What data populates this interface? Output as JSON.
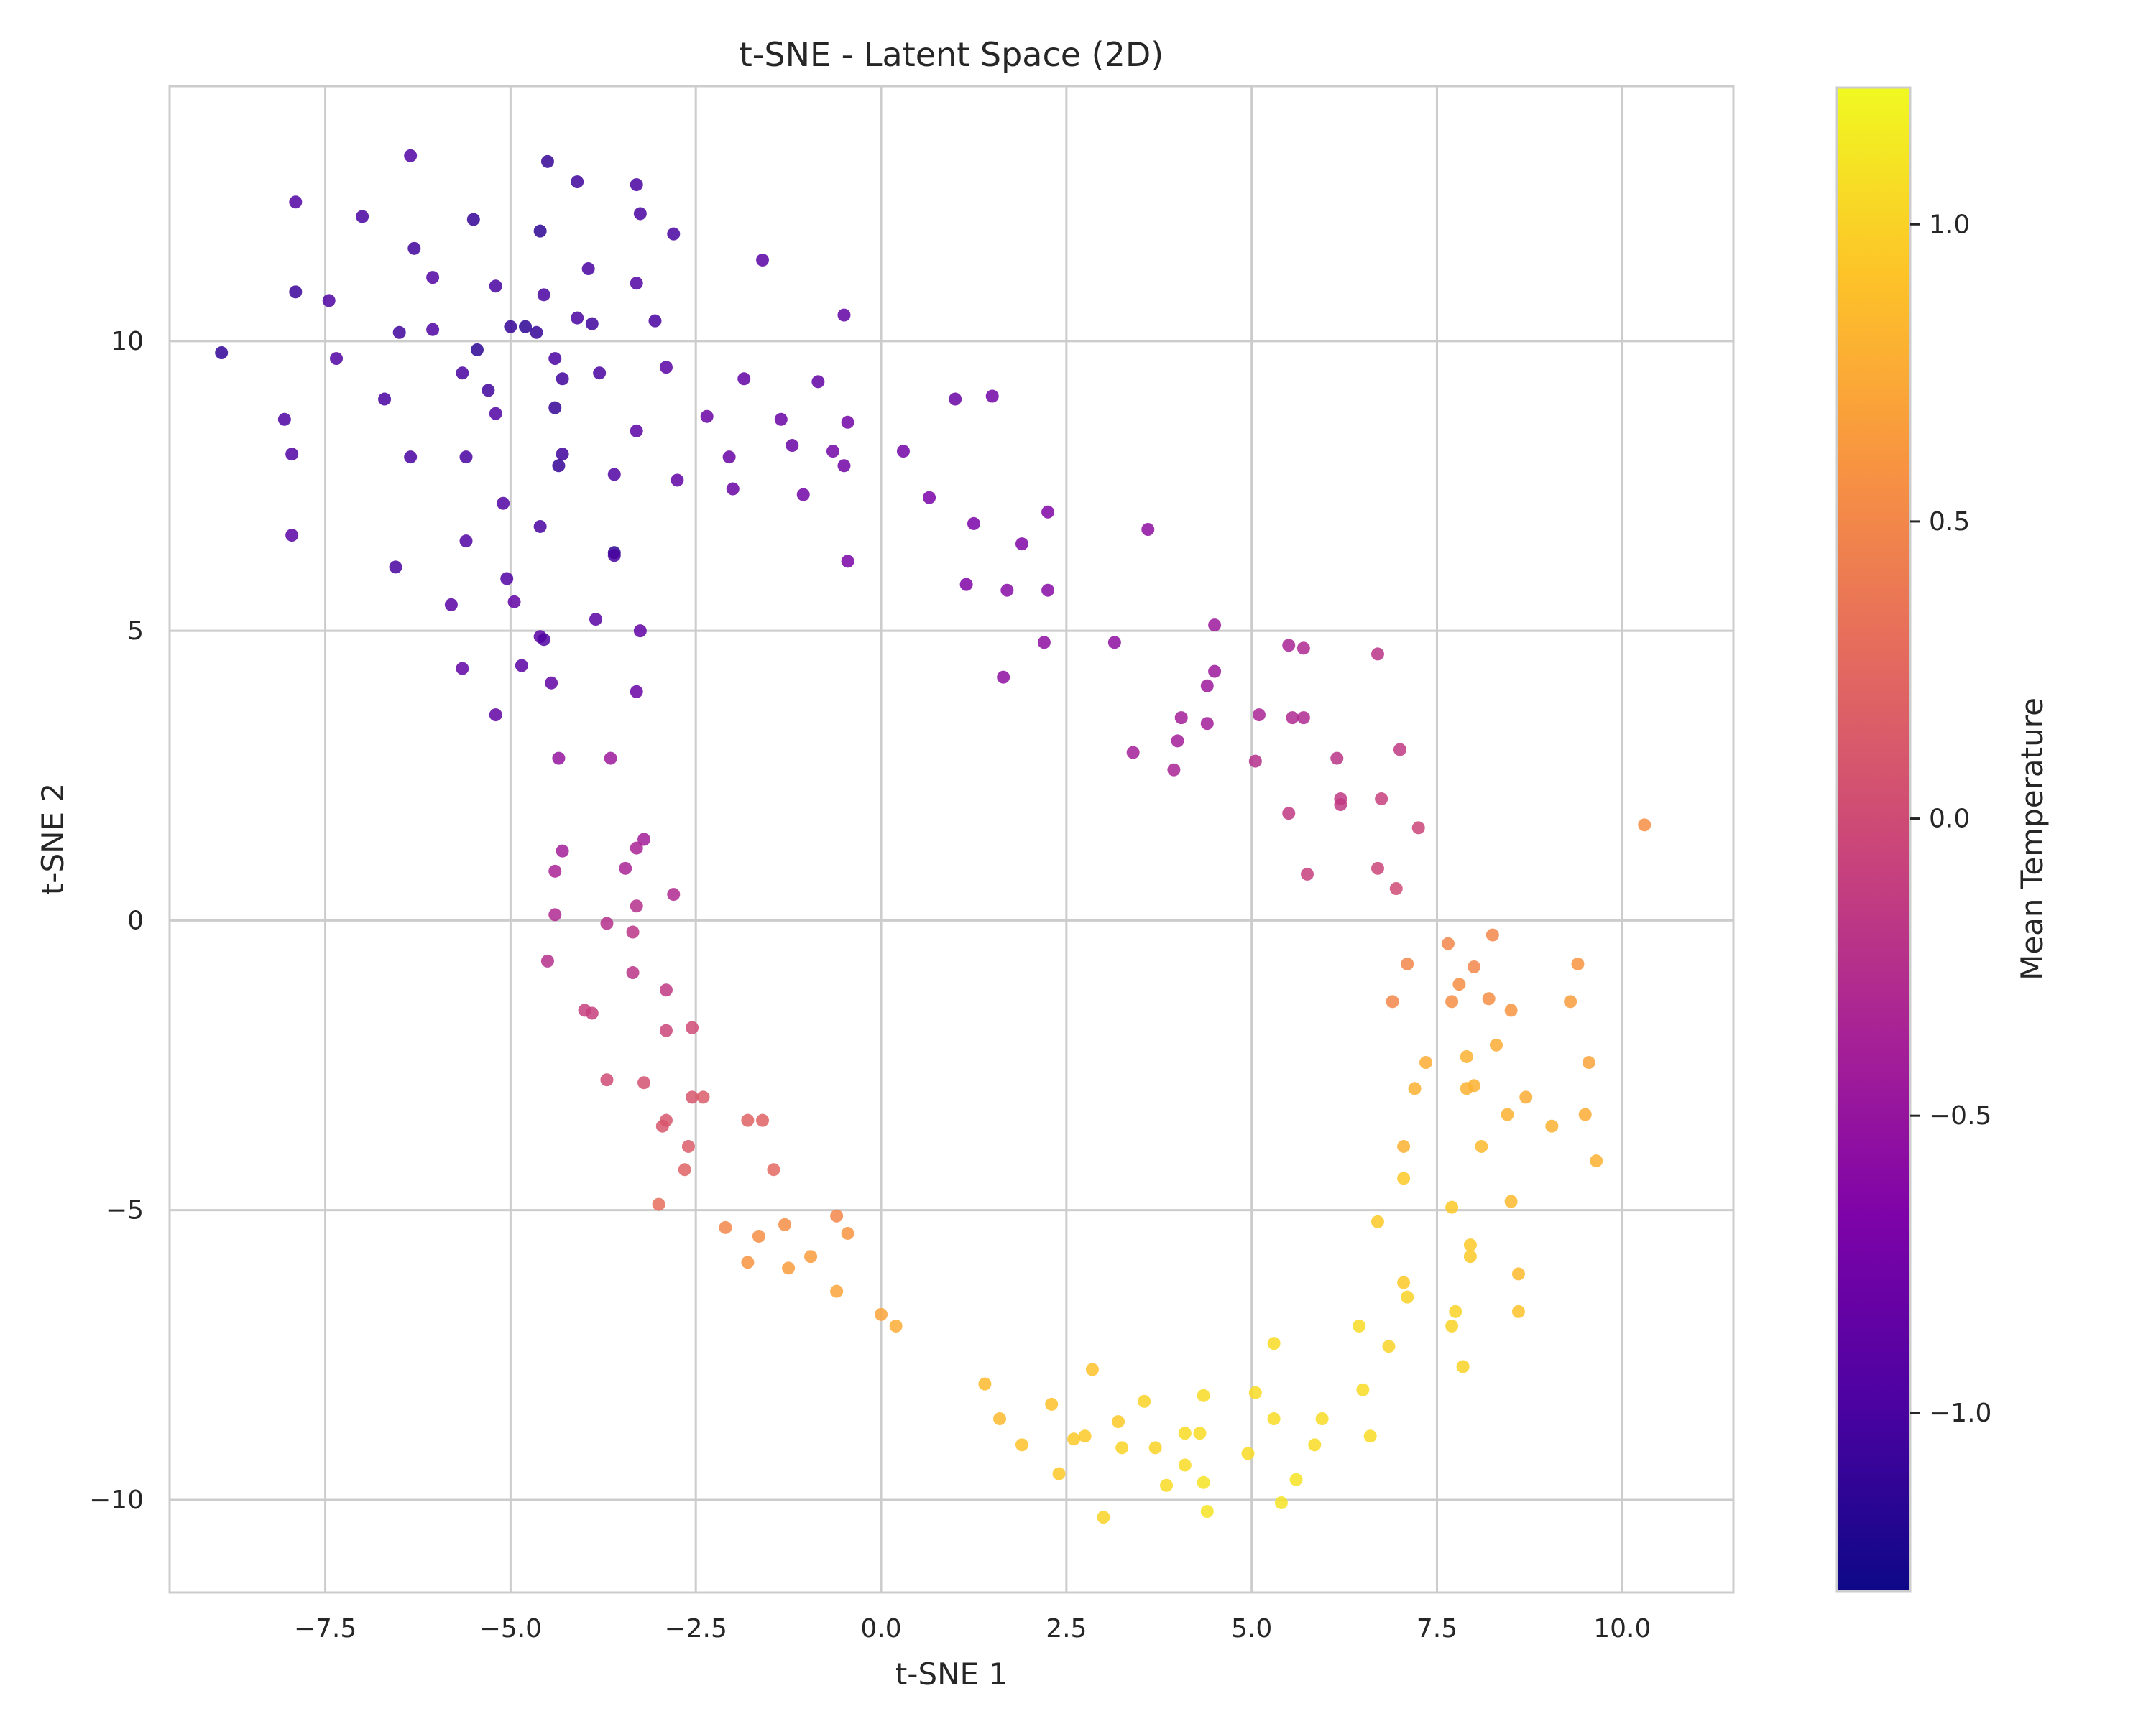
{
  "chart_data": {
    "type": "scatter",
    "title": "t-SNE - Latent Space (2D)",
    "xlabel": "t-SNE 1",
    "ylabel": "t-SNE 2",
    "xlim": [
      -9.6,
      11.5
    ],
    "ylim": [
      -11.6,
      14.4
    ],
    "xticks": [
      -7.5,
      -5.0,
      -2.5,
      0.0,
      2.5,
      5.0,
      7.5,
      10.0
    ],
    "xtick_labels": [
      "−7.5",
      "−5.0",
      "−2.5",
      "0.0",
      "2.5",
      "5.0",
      "7.5",
      "10.0"
    ],
    "yticks": [
      -10,
      -5,
      0,
      5,
      10
    ],
    "ytick_labels": [
      "−10",
      "−5",
      "0",
      "5",
      "10"
    ],
    "grid": true,
    "colorbar": {
      "label": "Mean Temperature",
      "colormap": "plasma",
      "range": [
        -1.3,
        1.23
      ],
      "ticks": [
        -1.0,
        -0.5,
        0.0,
        0.5,
        1.0
      ],
      "tick_labels": [
        "−1.0",
        "−0.5",
        "0.0",
        "0.5",
        "1.0"
      ]
    },
    "points": [
      [
        -8.9,
        9.8,
        -1.12
      ],
      [
        -7.9,
        12.4,
        -0.95
      ],
      [
        -7.9,
        10.85,
        -1.08
      ],
      [
        -8.05,
        8.65,
        -0.98
      ],
      [
        -7.95,
        8.05,
        -0.95
      ],
      [
        -7.95,
        6.65,
        -0.9
      ],
      [
        -7.45,
        10.7,
        -0.98
      ],
      [
        -7.35,
        9.7,
        -0.95
      ],
      [
        -7.0,
        12.15,
        -1.0
      ],
      [
        -6.35,
        13.2,
        -0.95
      ],
      [
        -6.3,
        11.6,
        -1.05
      ],
      [
        -6.05,
        11.1,
        -0.95
      ],
      [
        -6.05,
        10.2,
        -0.98
      ],
      [
        -6.5,
        10.15,
        -1.05
      ],
      [
        -6.7,
        9.0,
        -1.0
      ],
      [
        -6.35,
        8.0,
        -1.0
      ],
      [
        -6.55,
        6.1,
        -1.0
      ],
      [
        -5.5,
        12.1,
        -1.1
      ],
      [
        -5.45,
        9.85,
        -1.15
      ],
      [
        -5.65,
        9.45,
        -1.0
      ],
      [
        -5.3,
        9.15,
        -1.05
      ],
      [
        -5.2,
        10.95,
        -1.0
      ],
      [
        -5.2,
        8.75,
        -0.95
      ],
      [
        -5.0,
        10.25,
        -1.1
      ],
      [
        -4.8,
        10.25,
        -1.15
      ],
      [
        -4.65,
        10.15,
        -1.1
      ],
      [
        -4.6,
        11.9,
        -1.15
      ],
      [
        -4.5,
        13.1,
        -1.1
      ],
      [
        -4.55,
        10.8,
        -1.0
      ],
      [
        -4.1,
        12.75,
        -1.05
      ],
      [
        -4.4,
        9.7,
        -1.0
      ],
      [
        -4.3,
        9.35,
        -1.05
      ],
      [
        -4.4,
        8.85,
        -1.1
      ],
      [
        -4.3,
        8.05,
        -1.05
      ],
      [
        -4.35,
        7.85,
        -1.1
      ],
      [
        -4.1,
        10.4,
        -1.0
      ],
      [
        -3.9,
        10.3,
        -1.05
      ],
      [
        -3.95,
        11.25,
        -1.0
      ],
      [
        -3.8,
        9.45,
        -1.0
      ],
      [
        -3.6,
        7.7,
        -0.95
      ],
      [
        -5.6,
        8.0,
        -1.0
      ],
      [
        -5.1,
        7.2,
        -0.95
      ],
      [
        -4.6,
        6.8,
        -1.0
      ],
      [
        -5.6,
        6.55,
        -0.95
      ],
      [
        -5.05,
        5.9,
        -0.95
      ],
      [
        -5.8,
        5.45,
        -0.9
      ],
      [
        -4.95,
        5.5,
        -0.85
      ],
      [
        -4.6,
        4.9,
        -0.9
      ],
      [
        -4.55,
        4.85,
        -0.95
      ],
      [
        -5.65,
        4.35,
        -0.85
      ],
      [
        -4.85,
        4.4,
        -0.9
      ],
      [
        -4.45,
        4.1,
        -0.85
      ],
      [
        -5.2,
        3.55,
        -0.85
      ],
      [
        -3.6,
        6.35,
        -1.15
      ],
      [
        -3.6,
        6.3,
        -1.0
      ],
      [
        -3.85,
        5.2,
        -0.9
      ],
      [
        -3.3,
        3.95,
        -0.8
      ],
      [
        -3.25,
        5.0,
        -0.85
      ],
      [
        -3.3,
        12.7,
        -1.0
      ],
      [
        -3.25,
        12.2,
        -1.0
      ],
      [
        -2.8,
        11.85,
        -1.0
      ],
      [
        -3.3,
        11.0,
        -0.95
      ],
      [
        -3.05,
        10.35,
        -1.0
      ],
      [
        -2.9,
        9.55,
        -0.9
      ],
      [
        -3.3,
        8.45,
        -0.9
      ],
      [
        -2.75,
        7.6,
        -0.85
      ],
      [
        -1.6,
        11.4,
        -0.9
      ],
      [
        -0.5,
        10.45,
        -0.85
      ],
      [
        -1.85,
        9.35,
        -0.85
      ],
      [
        -0.85,
        9.3,
        -0.85
      ],
      [
        -2.35,
        8.7,
        -0.8
      ],
      [
        -2.05,
        8.0,
        -0.8
      ],
      [
        -2.0,
        7.45,
        -0.8
      ],
      [
        -1.35,
        8.65,
        -0.8
      ],
      [
        -1.2,
        8.2,
        -0.8
      ],
      [
        -1.05,
        7.35,
        -0.75
      ],
      [
        -0.65,
        8.1,
        -0.75
      ],
      [
        -0.45,
        8.6,
        -0.75
      ],
      [
        -0.5,
        7.85,
        -0.75
      ],
      [
        -0.45,
        6.2,
        -0.7
      ],
      [
        0.3,
        8.1,
        -0.75
      ],
      [
        0.65,
        7.3,
        -0.7
      ],
      [
        1.0,
        9.0,
        -0.8
      ],
      [
        1.5,
        9.05,
        -0.75
      ],
      [
        1.25,
        6.85,
        -0.7
      ],
      [
        1.15,
        5.8,
        -0.65
      ],
      [
        1.9,
        6.5,
        -0.65
      ],
      [
        2.25,
        7.05,
        -0.65
      ],
      [
        1.7,
        5.7,
        -0.6
      ],
      [
        2.25,
        5.7,
        -0.6
      ],
      [
        2.2,
        4.8,
        -0.55
      ],
      [
        1.65,
        4.2,
        -0.55
      ],
      [
        3.15,
        4.8,
        -0.55
      ],
      [
        3.6,
        6.75,
        -0.55
      ],
      [
        4.5,
        5.1,
        -0.45
      ],
      [
        4.5,
        4.3,
        -0.45
      ],
      [
        4.4,
        4.05,
        -0.45
      ],
      [
        4.4,
        3.4,
        -0.4
      ],
      [
        4.05,
        3.5,
        -0.4
      ],
      [
        4.0,
        3.1,
        -0.4
      ],
      [
        3.4,
        2.9,
        -0.4
      ],
      [
        3.95,
        2.6,
        -0.35
      ],
      [
        5.1,
        3.55,
        -0.35
      ],
      [
        5.5,
        4.75,
        -0.35
      ],
      [
        5.7,
        4.7,
        -0.3
      ],
      [
        5.55,
        3.5,
        -0.3
      ],
      [
        5.7,
        3.5,
        -0.3
      ],
      [
        5.05,
        2.75,
        -0.25
      ],
      [
        6.7,
        4.6,
        -0.2
      ],
      [
        6.15,
        2.8,
        -0.2
      ],
      [
        6.2,
        2.1,
        -0.15
      ],
      [
        6.2,
        2.0,
        -0.15
      ],
      [
        5.5,
        1.85,
        -0.15
      ],
      [
        5.75,
        0.8,
        -0.1
      ],
      [
        6.75,
        2.1,
        -0.1
      ],
      [
        7.0,
        2.95,
        -0.15
      ],
      [
        7.25,
        1.6,
        -0.05
      ],
      [
        6.7,
        0.9,
        -0.05
      ],
      [
        6.95,
        0.55,
        0.0
      ],
      [
        10.3,
        1.65,
        0.55
      ],
      [
        -4.35,
        2.8,
        -0.5
      ],
      [
        -3.65,
        2.8,
        -0.45
      ],
      [
        -4.3,
        1.2,
        -0.4
      ],
      [
        -3.2,
        1.4,
        -0.4
      ],
      [
        -3.3,
        1.25,
        -0.35
      ],
      [
        -3.45,
        0.9,
        -0.35
      ],
      [
        -4.4,
        0.85,
        -0.35
      ],
      [
        -2.8,
        0.45,
        -0.3
      ],
      [
        -4.4,
        0.1,
        -0.3
      ],
      [
        -3.3,
        0.25,
        -0.25
      ],
      [
        -3.7,
        -0.05,
        -0.25
      ],
      [
        -3.35,
        -0.2,
        -0.2
      ],
      [
        -4.5,
        -0.7,
        -0.25
      ],
      [
        -3.35,
        -0.9,
        -0.2
      ],
      [
        -2.9,
        -1.2,
        -0.15
      ],
      [
        -4.0,
        -1.55,
        -0.1
      ],
      [
        -3.9,
        -1.6,
        -0.1
      ],
      [
        -2.9,
        -1.9,
        -0.05
      ],
      [
        -2.55,
        -1.85,
        0.0
      ],
      [
        -3.7,
        -2.75,
        0.0
      ],
      [
        -3.2,
        -2.8,
        0.05
      ],
      [
        -2.9,
        -3.45,
        0.1
      ],
      [
        -2.95,
        -3.55,
        0.1
      ],
      [
        -2.55,
        -3.05,
        0.1
      ],
      [
        -2.4,
        -3.05,
        0.15
      ],
      [
        -1.8,
        -3.45,
        0.2
      ],
      [
        -1.6,
        -3.45,
        0.2
      ],
      [
        -2.6,
        -3.9,
        0.15
      ],
      [
        -2.65,
        -4.3,
        0.2
      ],
      [
        -1.45,
        -4.3,
        0.25
      ],
      [
        -3.0,
        -4.9,
        0.3
      ],
      [
        -2.1,
        -5.3,
        0.5
      ],
      [
        -1.3,
        -5.25,
        0.55
      ],
      [
        -1.65,
        -5.45,
        0.55
      ],
      [
        -0.6,
        -5.1,
        0.5
      ],
      [
        -0.45,
        -5.4,
        0.6
      ],
      [
        -1.8,
        -5.9,
        0.6
      ],
      [
        -1.25,
        -6.0,
        0.65
      ],
      [
        -0.95,
        -5.8,
        0.65
      ],
      [
        -0.6,
        -6.4,
        0.7
      ],
      [
        0.0,
        -6.8,
        0.7
      ],
      [
        0.2,
        -7.0,
        0.75
      ],
      [
        1.4,
        -8.0,
        0.85
      ],
      [
        1.6,
        -8.6,
        0.85
      ],
      [
        1.9,
        -9.05,
        0.9
      ],
      [
        2.3,
        -8.35,
        0.9
      ],
      [
        2.4,
        -9.55,
        0.95
      ],
      [
        2.6,
        -8.95,
        0.95
      ],
      [
        2.75,
        -8.9,
        0.95
      ],
      [
        2.85,
        -7.75,
        0.9
      ],
      [
        3.0,
        -10.3,
        1.0
      ],
      [
        3.2,
        -8.65,
        0.95
      ],
      [
        3.25,
        -9.1,
        1.0
      ],
      [
        3.55,
        -8.3,
        1.0
      ],
      [
        3.7,
        -9.1,
        1.0
      ],
      [
        3.85,
        -9.75,
        1.05
      ],
      [
        4.1,
        -8.85,
        1.05
      ],
      [
        4.1,
        -9.4,
        1.05
      ],
      [
        4.35,
        -8.2,
        1.05
      ],
      [
        4.3,
        -8.85,
        1.05
      ],
      [
        4.35,
        -9.7,
        1.1
      ],
      [
        4.4,
        -10.2,
        1.1
      ],
      [
        4.95,
        -9.2,
        1.05
      ],
      [
        5.05,
        -8.15,
        1.05
      ],
      [
        5.3,
        -8.6,
        1.05
      ],
      [
        5.3,
        -7.3,
        1.05
      ],
      [
        5.4,
        -10.05,
        1.1
      ],
      [
        5.6,
        -9.65,
        1.1
      ],
      [
        5.85,
        -9.05,
        1.05
      ],
      [
        5.95,
        -8.6,
        1.05
      ],
      [
        6.45,
        -7.0,
        1.05
      ],
      [
        6.5,
        -8.1,
        1.05
      ],
      [
        6.6,
        -8.9,
        1.05
      ],
      [
        6.85,
        -7.35,
        1.0
      ],
      [
        6.7,
        -5.2,
        0.95
      ],
      [
        7.05,
        -6.25,
        0.95
      ],
      [
        7.1,
        -6.5,
        1.0
      ],
      [
        7.05,
        -4.45,
        0.95
      ],
      [
        7.7,
        -4.95,
        0.95
      ],
      [
        7.7,
        -7.0,
        1.0
      ],
      [
        7.75,
        -6.75,
        1.0
      ],
      [
        7.85,
        -7.7,
        1.0
      ],
      [
        7.95,
        -5.6,
        0.95
      ],
      [
        7.95,
        -5.8,
        0.95
      ],
      [
        7.05,
        -3.9,
        0.8
      ],
      [
        7.2,
        -2.9,
        0.8
      ],
      [
        7.35,
        -2.45,
        0.75
      ],
      [
        7.9,
        -2.9,
        0.8
      ],
      [
        7.9,
        -2.35,
        0.8
      ],
      [
        8.0,
        -2.85,
        0.8
      ],
      [
        8.1,
        -3.9,
        0.85
      ],
      [
        8.3,
        -2.15,
        0.75
      ],
      [
        8.45,
        -3.35,
        0.8
      ],
      [
        8.5,
        -4.85,
        0.85
      ],
      [
        8.6,
        -6.1,
        0.85
      ],
      [
        8.6,
        -6.75,
        0.9
      ],
      [
        8.7,
        -3.05,
        0.75
      ],
      [
        9.05,
        -3.55,
        0.8
      ],
      [
        9.5,
        -3.35,
        0.75
      ],
      [
        9.55,
        -2.45,
        0.7
      ],
      [
        9.65,
        -4.15,
        0.8
      ],
      [
        9.3,
        -1.4,
        0.65
      ],
      [
        9.4,
        -0.75,
        0.6
      ],
      [
        7.1,
        -0.75,
        0.5
      ],
      [
        6.9,
        -1.4,
        0.5
      ],
      [
        7.65,
        -0.4,
        0.5
      ],
      [
        7.7,
        -1.4,
        0.55
      ],
      [
        7.8,
        -1.1,
        0.55
      ],
      [
        8.0,
        -0.8,
        0.5
      ],
      [
        8.2,
        -1.35,
        0.55
      ],
      [
        8.25,
        -0.25,
        0.5
      ],
      [
        8.5,
        -1.55,
        0.6
      ]
    ]
  }
}
